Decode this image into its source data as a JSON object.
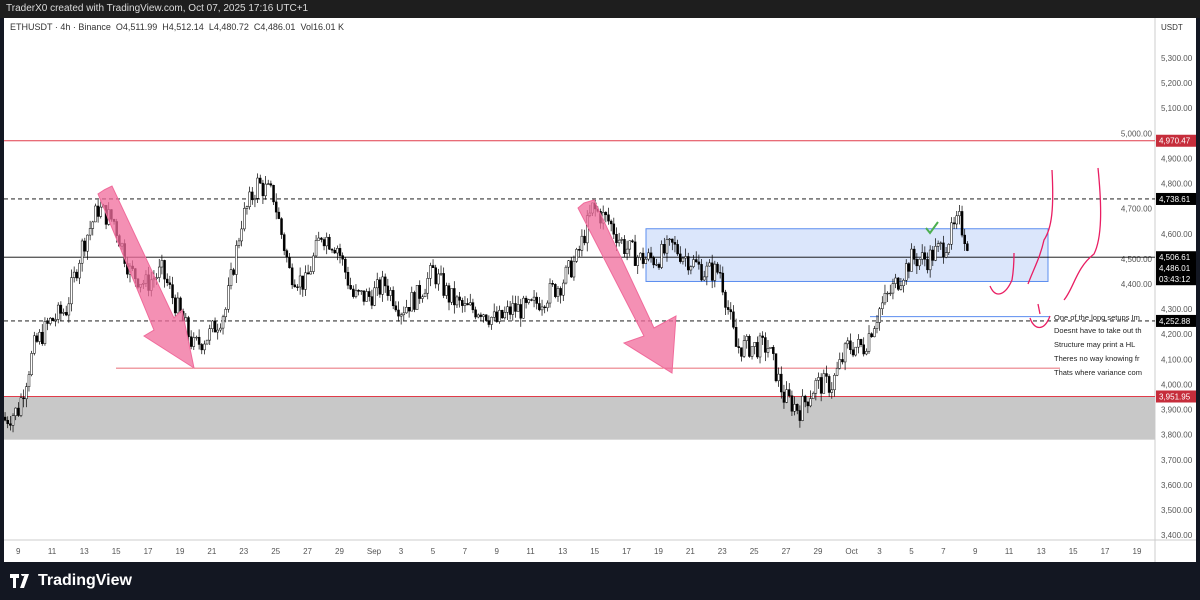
{
  "header": {
    "credit": "TraderX0 created with TradingView.com, Oct 07, 2025 17:16 UTC+1"
  },
  "legend": {
    "symbol": "ETHUSDT · 4h · Binance",
    "open": "O4,511.99",
    "high": "H4,512.14",
    "low": "L4,480.72",
    "close": "C4,486.01",
    "volume": "Vol16.01 K"
  },
  "footer": {
    "brand": "TradingView"
  },
  "chart_data": {
    "type": "candlestick",
    "currency": "USDT",
    "ylim": [
      3400,
      5350
    ],
    "yticks": [
      3400,
      3500,
      3600,
      3700,
      3800,
      3900,
      4000,
      4100,
      4200,
      4300,
      4400,
      4500,
      4600,
      4700,
      4800,
      4900,
      5000,
      5100,
      5200,
      5300
    ],
    "xticks": [
      "9",
      "11",
      "13",
      "15",
      "17",
      "19",
      "21",
      "23",
      "25",
      "27",
      "29",
      "Sep",
      "3",
      "5",
      "7",
      "9",
      "11",
      "13",
      "15",
      "17",
      "19",
      "21",
      "23",
      "25",
      "27",
      "29",
      "Oct",
      "3",
      "5",
      "7",
      "9",
      "11",
      "13",
      "15",
      "17",
      "19"
    ],
    "daily_close_approx": {
      "start": "Aug 8",
      "values": [
        3900,
        4150,
        4250,
        4300,
        4550,
        4700,
        4650,
        4450,
        4400,
        4450,
        4300,
        4150,
        4200,
        4300,
        4650,
        4800,
        4750,
        4450,
        4400,
        4600,
        4550,
        4350,
        4350,
        4400,
        4300,
        4350,
        4450,
        4350,
        4300,
        4300,
        4250,
        4300,
        4300,
        4350,
        4400,
        4500,
        4700,
        4650,
        4550,
        4500,
        4500,
        4550,
        4500,
        4450,
        4450,
        4150,
        4150,
        4150,
        3950,
        3900,
        4000,
        4000,
        4150,
        4150,
        4300,
        4400,
        4500,
        4500,
        4550,
        4650,
        4486.01
      ]
    },
    "levels": [
      {
        "price": 4970.47,
        "label": "4,970.47",
        "style": "solid",
        "color": "#e03c4a"
      },
      {
        "price": 4738.61,
        "label": "4,738.61",
        "style": "dashed",
        "color": "#000000"
      },
      {
        "price": 4506.61,
        "label": "4,506.61",
        "style": "solid",
        "color": "#000000"
      },
      {
        "price": 4252.88,
        "label": "4,252.88",
        "style": "dashed",
        "color": "#000000"
      },
      {
        "price": 3951.95,
        "label": "3,951.95",
        "style": "solid",
        "color": "#e03c4a"
      }
    ],
    "last_price": {
      "label": "4,486.01",
      "countdown": "03:43:12"
    },
    "zones": [
      {
        "from": 3780,
        "to": 3951.95,
        "color": "#c8c8c8"
      },
      {
        "from": 4410,
        "to": 4620,
        "color": "#dbe6fb"
      }
    ],
    "notes": [
      "One of the long setups Im",
      "Doesnt have to take out th",
      "Structure may print a HL",
      "Theres no way knowing fr",
      "Thats where variance com"
    ],
    "colors": {
      "up": "#000000",
      "down": "#000000",
      "arrow": "#f06b9b",
      "drawing": "#e91e63",
      "check": "#4caf50"
    }
  }
}
